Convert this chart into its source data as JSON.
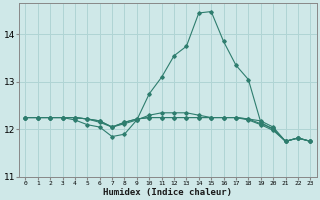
{
  "xlabel": "Humidex (Indice chaleur)",
  "bg_color": "#cfe8e8",
  "grid_color": "#b0d4d4",
  "line_color": "#2e7d6e",
  "xlim": [
    -0.5,
    23.5
  ],
  "ylim": [
    11.0,
    14.65
  ],
  "yticks": [
    11,
    12,
    13,
    14
  ],
  "xticks": [
    0,
    1,
    2,
    3,
    4,
    5,
    6,
    7,
    8,
    9,
    10,
    11,
    12,
    13,
    14,
    15,
    16,
    17,
    18,
    19,
    20,
    21,
    22,
    23
  ],
  "series": [
    [
      12.25,
      12.25,
      12.25,
      12.25,
      12.2,
      12.1,
      12.05,
      11.85,
      11.9,
      12.2,
      12.75,
      13.1,
      13.55,
      13.75,
      14.45,
      14.48,
      13.85,
      13.35,
      13.05,
      12.15,
      12.0,
      11.75,
      11.82,
      11.75
    ],
    [
      12.25,
      12.25,
      12.25,
      12.25,
      12.25,
      12.22,
      12.18,
      12.05,
      12.15,
      12.22,
      12.25,
      12.25,
      12.25,
      12.25,
      12.25,
      12.25,
      12.25,
      12.25,
      12.22,
      12.18,
      12.05,
      11.75,
      11.82,
      11.75
    ],
    [
      12.25,
      12.25,
      12.25,
      12.25,
      12.25,
      12.22,
      12.18,
      12.05,
      12.15,
      12.22,
      12.25,
      12.25,
      12.25,
      12.25,
      12.25,
      12.25,
      12.25,
      12.25,
      12.22,
      12.12,
      12.02,
      11.75,
      11.82,
      11.75
    ],
    [
      12.25,
      12.25,
      12.25,
      12.25,
      12.25,
      12.22,
      12.15,
      12.05,
      12.12,
      12.2,
      12.3,
      12.35,
      12.35,
      12.35,
      12.3,
      12.25,
      12.25,
      12.25,
      12.2,
      12.1,
      11.98,
      11.75,
      11.82,
      11.75
    ]
  ]
}
